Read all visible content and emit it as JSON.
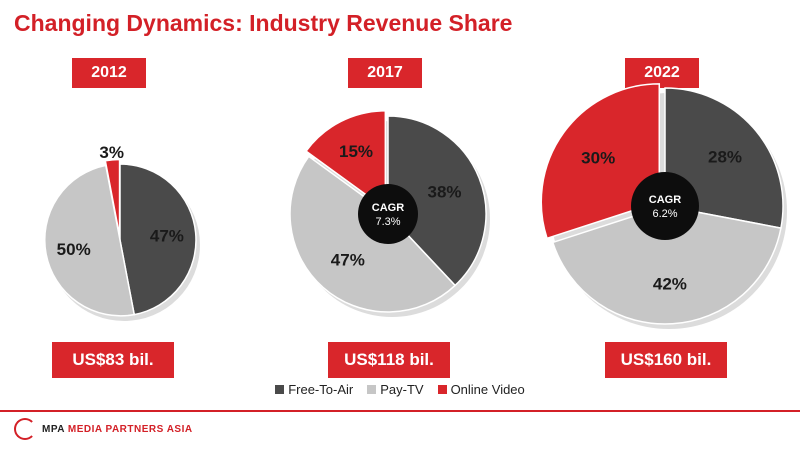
{
  "title": "Changing Dynamics: Industry Revenue Share",
  "colors": {
    "free_to_air": "#4a4a4a",
    "pay_tv": "#c6c6c6",
    "online_video": "#d9262b",
    "accent": "#d32027"
  },
  "footer": {
    "logo_abbr": "MPA",
    "logo_name": "MEDIA PARTNERS ASIA"
  },
  "chart_data": [
    {
      "type": "pie",
      "year": "2012",
      "total": "US$83 bil.",
      "cagr_label": "",
      "cagr_value": "",
      "slices": [
        {
          "name": "Free-To-Air",
          "value": 47,
          "label": "47%"
        },
        {
          "name": "Pay-TV",
          "value": 50,
          "label": "50%"
        },
        {
          "name": "Online Video",
          "value": 3,
          "label": "3%"
        }
      ]
    },
    {
      "type": "pie",
      "year": "2017",
      "total": "US$118 bil.",
      "cagr_label": "CAGR",
      "cagr_value": "7.3%",
      "slices": [
        {
          "name": "Free-To-Air",
          "value": 38,
          "label": "38%"
        },
        {
          "name": "Pay-TV",
          "value": 47,
          "label": "47%"
        },
        {
          "name": "Online Video",
          "value": 15,
          "label": "15%"
        }
      ]
    },
    {
      "type": "pie",
      "year": "2022",
      "total": "US$160 bil.",
      "cagr_label": "CAGR",
      "cagr_value": "6.2%",
      "slices": [
        {
          "name": "Free-To-Air",
          "value": 28,
          "label": "28%"
        },
        {
          "name": "Pay-TV",
          "value": 42,
          "label": "42%"
        },
        {
          "name": "Online Video",
          "value": 30,
          "label": "30%"
        }
      ]
    }
  ],
  "legend": [
    {
      "label": "Free-To-Air",
      "color": "#4a4a4a"
    },
    {
      "label": "Pay-TV",
      "color": "#c6c6c6"
    },
    {
      "label": "Online Video",
      "color": "#d9262b"
    }
  ]
}
